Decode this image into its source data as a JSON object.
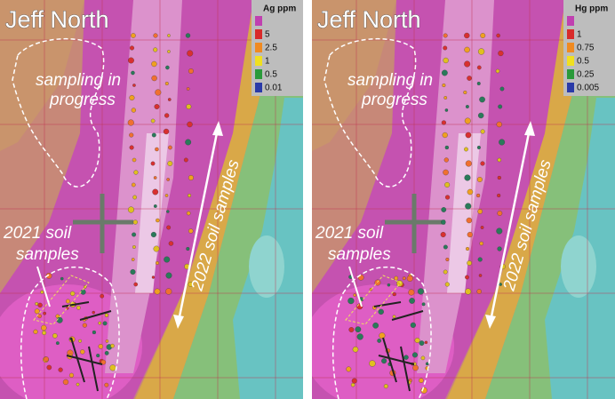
{
  "panels": [
    {
      "title": "Jeff North",
      "legend": {
        "title": "Ag ppm",
        "items": [
          "5",
          "2.5",
          "1",
          "0.5",
          "0.01"
        ]
      },
      "progress_note": [
        "sampling in",
        "progress"
      ],
      "old_samples": [
        "2021 soil",
        "samples"
      ],
      "new_samples": "2022 soil samples"
    },
    {
      "title": "Jeff North",
      "legend": {
        "title": "Hg ppm",
        "items": [
          "1",
          "0.75",
          "0.5",
          "0.25",
          "0.005"
        ]
      },
      "progress_note": [
        "sampling in",
        "progress"
      ],
      "old_samples": [
        "2021 soil",
        "samples"
      ],
      "new_samples": "2022 soil samples"
    }
  ]
}
